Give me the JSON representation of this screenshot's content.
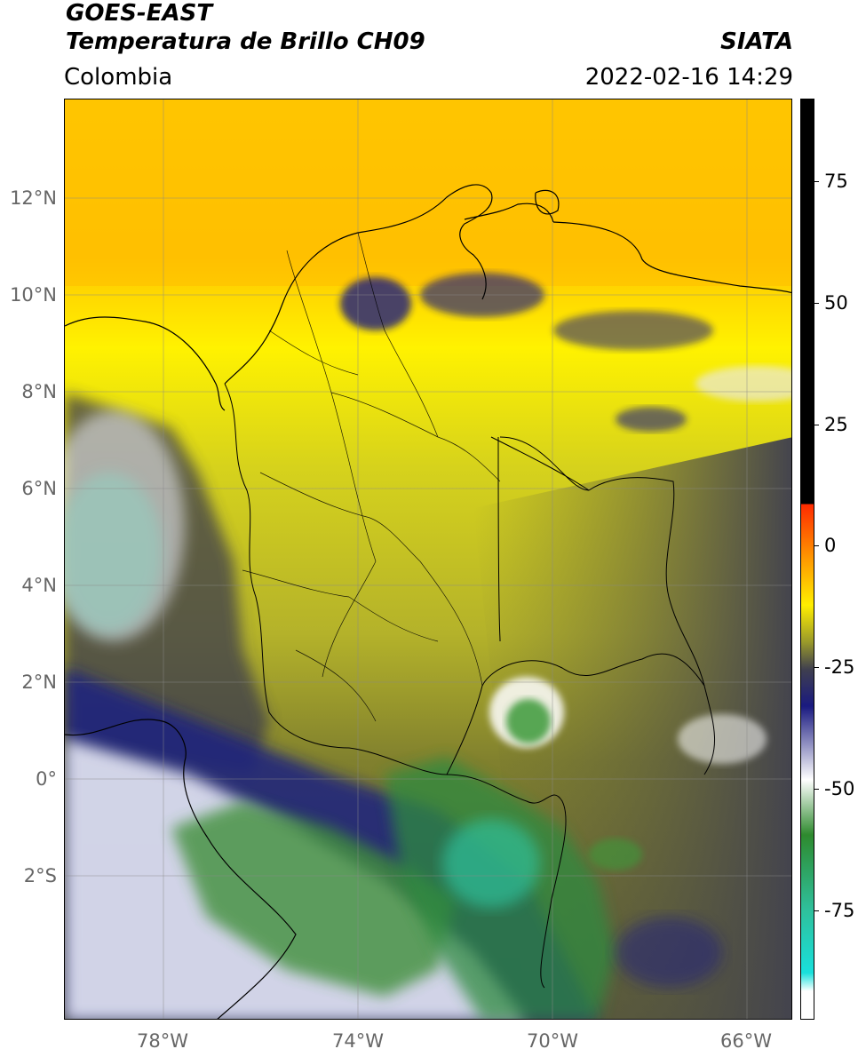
{
  "header": {
    "satellite": "GOES-EAST",
    "product": "Temperatura de Brillo CH09",
    "region": "Colombia",
    "agency": "SIATA",
    "timestamp": "2022-02-16 14:29"
  },
  "map": {
    "lat_labels": [
      "12°N",
      "10°N",
      "8°N",
      "6°N",
      "4°N",
      "2°N",
      "0°",
      "2°S"
    ],
    "lon_labels": [
      "78°W",
      "74°W",
      "70°W",
      "66°W"
    ]
  },
  "colorbar": {
    "labels": [
      "75",
      "50",
      "25",
      "0",
      "-25",
      "-50",
      "-75"
    ],
    "colors": {
      "black": "#000000",
      "red": "#ff2a00",
      "orange": "#ff9900",
      "yellow": "#ffee00",
      "olive": "#9a9a2a",
      "gray": "#3f3f4f",
      "navy": "#1a1a80",
      "white": "#ffffff",
      "green": "#2e8a2e",
      "teal": "#2fbf9a",
      "cyan": "#19e0dc"
    }
  }
}
